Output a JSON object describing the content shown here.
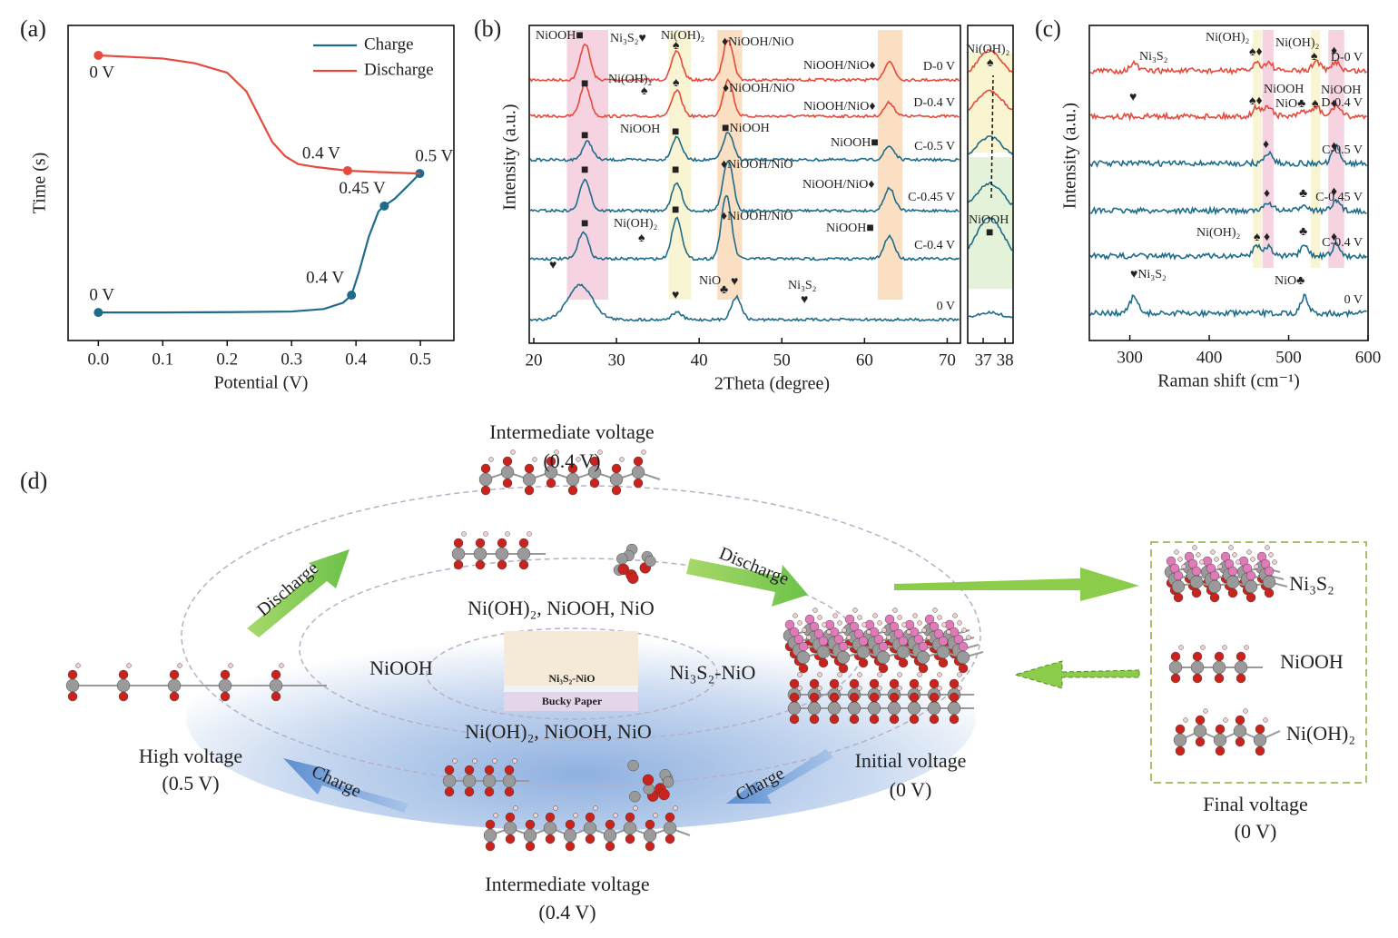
{
  "panels": {
    "a": "(a)",
    "b": "(b)",
    "c": "(c)",
    "d": "(d)"
  },
  "chart_data": [
    {
      "type": "line",
      "xlabel": "Potential (V)",
      "ylabel": "Time (s)",
      "xlim": [
        -0.047,
        0.552
      ],
      "ylim": [
        0,
        1
      ],
      "xticks": [
        {
          "value": 0,
          "label": "0.0"
        },
        0.1,
        0.2,
        0.3,
        0.4,
        0.5
      ],
      "legend": "upper right",
      "series": [
        {
          "name": "Charge",
          "color": "#1f6c8a",
          "x": [
            0,
            0.1,
            0.2,
            0.3,
            0.35,
            0.38,
            0.393,
            0.405,
            0.42,
            0.435,
            0.444,
            0.46,
            0.48,
            0.499
          ],
          "values": [
            0.089,
            0.089,
            0.09,
            0.092,
            0.1,
            0.12,
            0.144,
            0.22,
            0.33,
            0.41,
            0.427,
            0.45,
            0.49,
            0.53
          ],
          "markers": [
            {
              "x": 0,
              "value": 0.089,
              "label": "0 V"
            },
            {
              "x": 0.393,
              "value": 0.144,
              "label": "0.4 V"
            },
            {
              "x": 0.444,
              "value": 0.427,
              "label": "0.45 V"
            },
            {
              "x": 0.499,
              "value": 0.53,
              "label": "0.5 V"
            }
          ]
        },
        {
          "name": "Discharge",
          "color": "#e54a3d",
          "x": [
            0,
            0.05,
            0.1,
            0.15,
            0.2,
            0.23,
            0.25,
            0.27,
            0.29,
            0.31,
            0.34,
            0.387,
            0.43,
            0.499
          ],
          "values": [
            0.905,
            0.9,
            0.895,
            0.88,
            0.85,
            0.79,
            0.71,
            0.63,
            0.585,
            0.56,
            0.55,
            0.539,
            0.535,
            0.53
          ],
          "markers": [
            {
              "x": 0,
              "value": 0.905,
              "label": "0 V"
            },
            {
              "x": 0.387,
              "value": 0.539,
              "label": "0.4 V"
            }
          ]
        }
      ]
    },
    {
      "type": "spectra",
      "xlabel": "2Theta (degree)",
      "ylabel": "Intensity (a.u.)",
      "xlim": [
        19.45,
        71.6
      ],
      "xticks": [
        20,
        30,
        40,
        50,
        60,
        70
      ],
      "inset": {
        "xlim": [
          36.29,
          38.37
        ],
        "xticks": [
          37,
          38
        ]
      },
      "bands": [
        {
          "range": [
            24,
            29
          ],
          "color": "#f2c4d6"
        },
        {
          "range": [
            36.3,
            39
          ],
          "color": "#f7f2c6"
        },
        {
          "range": [
            42.2,
            45.2
          ],
          "color": "#f9d4ae"
        },
        {
          "range": [
            61.6,
            64.6
          ],
          "color": "#f9d4ae"
        }
      ],
      "series": [
        {
          "name": "D-0 V",
          "color": "#e54a3d",
          "peaks": [
            {
              "x": 26.2,
              "h": 40
            },
            {
              "x": 37.3,
              "h": 32
            },
            {
              "x": 43.5,
              "h": 45
            },
            {
              "x": 63,
              "h": 20
            }
          ]
        },
        {
          "name": "D-0.4 V",
          "color": "#e54a3d",
          "peaks": [
            {
              "x": 26.2,
              "h": 35
            },
            {
              "x": 37.3,
              "h": 28
            },
            {
              "x": 43.5,
              "h": 40
            },
            {
              "x": 63,
              "h": 15
            }
          ]
        },
        {
          "name": "C-0.5 V",
          "color": "#1f6c8a",
          "peaks": [
            {
              "x": 26.5,
              "h": 20
            },
            {
              "x": 37.3,
              "h": 25
            },
            {
              "x": 43.5,
              "h": 30
            },
            {
              "x": 63,
              "h": 15
            }
          ]
        },
        {
          "name": "C-0.45 V",
          "color": "#1f6c8a",
          "peaks": [
            {
              "x": 26.2,
              "h": 35
            },
            {
              "x": 37.3,
              "h": 30
            },
            {
              "x": 43.5,
              "h": 55
            },
            {
              "x": 63,
              "h": 25
            }
          ]
        },
        {
          "name": "C-0.4 V",
          "color": "#1f6c8a",
          "peaks": [
            {
              "x": 26,
              "h": 30
            },
            {
              "x": 37.3,
              "h": 45
            },
            {
              "x": 43.3,
              "h": 70
            },
            {
              "x": 63,
              "h": 25
            }
          ]
        },
        {
          "name": "0 V",
          "color": "#1f6c8a",
          "peaks": [
            {
              "x": 25.6,
              "h": 38
            },
            {
              "x": 37.3,
              "h": 8
            },
            {
              "x": 44.5,
              "h": 25
            }
          ]
        }
      ],
      "annotations": [
        "NiOOH■",
        "Ni₃S₂♥",
        "Ni(OH)₂",
        "♠",
        "♦NiOOH/NiO",
        "NiOOH/NiO♦",
        "Ni(OH)₂",
        "♠",
        "■",
        "♠",
        "♦NiOOH/NiO",
        "NiOOH/NiO♦",
        "NiOOH",
        "■",
        "■",
        "■NiOOH",
        "NiOOH■",
        "■",
        "■",
        "♦NiOOH/NiO",
        "NiOOH/NiO♦",
        "Ni(OH)₂",
        "♠",
        "■",
        "■",
        "♦NiOOH/NiO",
        "NiOOH■",
        "♥",
        "NiO",
        "♣",
        "♥",
        "♥",
        "Ni₃S₂",
        "♥",
        "Ni(OH)₂",
        "♠",
        "NiOOH",
        "■"
      ]
    },
    {
      "type": "spectra",
      "xlabel": "Raman shift (cm⁻¹)",
      "ylabel": "Intensity (a.u.)",
      "xlim": [
        249,
        600
      ],
      "xticks": [
        300,
        400,
        500,
        600
      ],
      "bands": [
        {
          "range": [
            455,
            466
          ],
          "color": "#f7f2c6"
        },
        {
          "range": [
            467,
            481
          ],
          "color": "#f2c4d6"
        },
        {
          "range": [
            528,
            540
          ],
          "color": "#f7f2c6"
        },
        {
          "range": [
            550,
            570
          ],
          "color": "#f2c4d6"
        }
      ],
      "series": [
        {
          "name": "D-0 V",
          "color": "#e54a3d",
          "peaks": [
            {
              "x": 305,
              "h": 8
            },
            {
              "x": 460,
              "h": 9
            },
            {
              "x": 475,
              "h": 9
            },
            {
              "x": 535,
              "h": 11
            },
            {
              "x": 560,
              "h": 10
            }
          ]
        },
        {
          "name": "D-0.4 V",
          "color": "#e54a3d",
          "peaks": [
            {
              "x": 460,
              "h": 10
            },
            {
              "x": 475,
              "h": 11
            },
            {
              "x": 520,
              "h": 6
            },
            {
              "x": 535,
              "h": 10
            },
            {
              "x": 560,
              "h": 12
            }
          ]
        },
        {
          "name": "C-0.5 V",
          "color": "#1f6c8a",
          "peaks": [
            {
              "x": 475,
              "h": 12
            },
            {
              "x": 560,
              "h": 18
            }
          ]
        },
        {
          "name": "C-0.45 V",
          "color": "#1f6c8a",
          "peaks": [
            {
              "x": 475,
              "h": 9
            },
            {
              "x": 520,
              "h": 7
            },
            {
              "x": 560,
              "h": 10
            }
          ]
        },
        {
          "name": "C-0.4 V",
          "color": "#1f6c8a",
          "peaks": [
            {
              "x": 460,
              "h": 12
            },
            {
              "x": 475,
              "h": 10
            },
            {
              "x": 520,
              "h": 10
            },
            {
              "x": 560,
              "h": 12
            }
          ]
        },
        {
          "name": "0 V",
          "color": "#1f6c8a",
          "peaks": [
            {
              "x": 305,
              "h": 18
            },
            {
              "x": 520,
              "h": 18
            }
          ]
        }
      ],
      "annotations": [
        "Ni₃S₂",
        "Ni(OH)₂",
        "♠♦",
        "Ni(OH)₂",
        "♠",
        "♦",
        "♠♦",
        "NiOOH",
        "NiO♣",
        "♠",
        "NiOOH",
        "♦",
        "♦",
        "♦",
        "♦",
        "♣",
        "♦",
        "Ni(OH)₂",
        "♠",
        "♦",
        "♣",
        "♦",
        "♥Ni₃S₂",
        "NiO♣",
        "♥"
      ]
    }
  ],
  "diagram": {
    "top_title": "Intermediate voltage",
    "top_voltage": "(0.4 V)",
    "top_phases": "Ni(OH)₂, NiOOH, NiO",
    "inner_left": "NiOOH",
    "inner_right": "Ni₃S₂-NiO",
    "bottom_phases": "Ni(OH)₂, NiOOH, NiO",
    "high_title": "High voltage",
    "high_voltage": "(0.5 V)",
    "initial_title": "Initial voltage",
    "initial_voltage": "(0 V)",
    "bottom_title": "Intermediate voltage",
    "bottom_voltage": "(0.4 V)",
    "final_title": "Final voltage",
    "final_voltage": "(0 V)",
    "legend": [
      "Ni₃S₂",
      "NiOOH",
      "Ni(OH)₂"
    ],
    "discharge": "Discharge",
    "charge": "Charge",
    "chip_top": "Ni₃S₂-NiO",
    "chip_bottom": "Bucky Paper"
  }
}
